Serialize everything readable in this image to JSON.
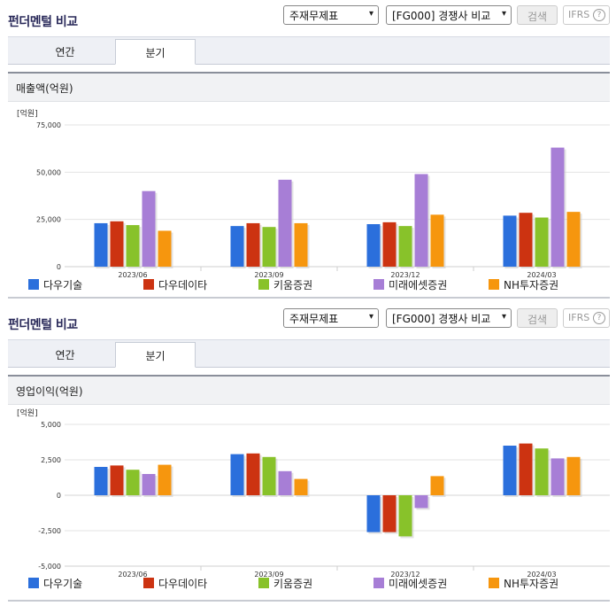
{
  "panels": [
    {
      "header": {
        "title": "펀더멘털 비교",
        "select_statement": "주재무제표",
        "select_compare": "[FG000] 경쟁사 비교",
        "search_label": "검색",
        "ifrs_label": "IFRS",
        "help_label": "?"
      },
      "tabs": [
        {
          "label": "연간"
        },
        {
          "label": "분기"
        }
      ],
      "active_tab": "분기",
      "chart_title": "매출액(억원)"
    },
    {
      "header": {
        "title": "펀더멘털 비교",
        "select_statement": "주재무제표",
        "select_compare": "[FG000] 경쟁사 비교",
        "search_label": "검색",
        "ifrs_label": "IFRS",
        "help_label": "?"
      },
      "tabs": [
        {
          "label": "연간"
        },
        {
          "label": "분기"
        }
      ],
      "active_tab": "분기",
      "chart_title": "영업이익(억원)"
    }
  ],
  "chart_data": [
    {
      "type": "bar",
      "title": "매출액(억원)",
      "unit_label": "[억원]",
      "categories": [
        "2023/06",
        "2023/09",
        "2023/12",
        "2024/03"
      ],
      "ylim": [
        0,
        75000
      ],
      "yticks": [
        0,
        25000,
        50000,
        75000
      ],
      "ytick_labels": [
        "0",
        "25,000",
        "50,000",
        "75,000"
      ],
      "series": [
        {
          "name": "다우기술",
          "color": "#2b6fdc",
          "values": [
            23000,
            21500,
            22500,
            27000
          ]
        },
        {
          "name": "다우데이타",
          "color": "#cc3311",
          "values": [
            24000,
            23000,
            23500,
            28500
          ]
        },
        {
          "name": "키움증권",
          "color": "#88c22a",
          "values": [
            22000,
            21000,
            21500,
            26000
          ]
        },
        {
          "name": "미래에셋증권",
          "color": "#a77ed6",
          "values": [
            40000,
            46000,
            49000,
            63000
          ]
        },
        {
          "name": "NH투자증권",
          "color": "#f6960e",
          "values": [
            19000,
            23000,
            27500,
            29000
          ]
        }
      ],
      "grid": true,
      "legend_position": "bottom"
    },
    {
      "type": "bar",
      "title": "영업이익(억원)",
      "unit_label": "[억원]",
      "categories": [
        "2023/06",
        "2023/09",
        "2023/12",
        "2024/03"
      ],
      "ylim": [
        -5000,
        5000
      ],
      "yticks": [
        -5000,
        -2500,
        0,
        2500,
        5000
      ],
      "ytick_labels": [
        "-5,000",
        "-2,500",
        "0",
        "2,500",
        "5,000"
      ],
      "series": [
        {
          "name": "다우기술",
          "color": "#2b6fdc",
          "values": [
            2000,
            2900,
            -2600,
            3500
          ]
        },
        {
          "name": "다우데이타",
          "color": "#cc3311",
          "values": [
            2100,
            2950,
            -2600,
            3650
          ]
        },
        {
          "name": "키움증권",
          "color": "#88c22a",
          "values": [
            1800,
            2700,
            -2900,
            3300
          ]
        },
        {
          "name": "미래에셋증권",
          "color": "#a77ed6",
          "values": [
            1500,
            1700,
            -900,
            2600
          ]
        },
        {
          "name": "NH투자증권",
          "color": "#f6960e",
          "values": [
            2150,
            1150,
            1350,
            2700
          ]
        }
      ],
      "grid": true,
      "legend_position": "bottom"
    }
  ]
}
